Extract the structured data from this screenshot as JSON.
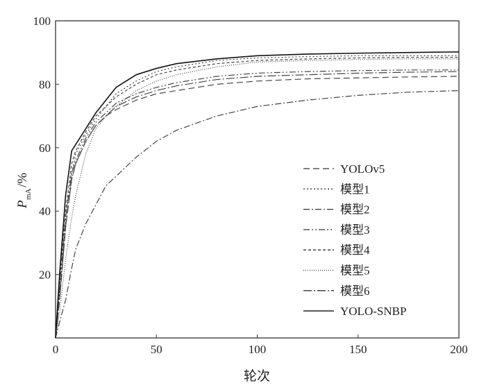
{
  "chart_data": {
    "type": "line",
    "title": "",
    "xlabel": "轮次",
    "ylabel": "P",
    "ylabel_sub": "mA",
    "ylabel_suffix": "/%",
    "xlim": [
      0,
      200
    ],
    "ylim": [
      0,
      100
    ],
    "xticks": [
      0,
      50,
      100,
      150,
      200
    ],
    "yticks": [
      20,
      40,
      60,
      80,
      100
    ],
    "grid": false,
    "legend_position": "center-right",
    "x": [
      0,
      2,
      5,
      8,
      10,
      15,
      20,
      25,
      30,
      40,
      50,
      60,
      80,
      100,
      125,
      150,
      175,
      200
    ],
    "series": [
      {
        "name": "YOLOv5",
        "dash": "dashed",
        "values": [
          0,
          12,
          35,
          50,
          55,
          62,
          67,
          70,
          72,
          75,
          77,
          78,
          80,
          81,
          81.7,
          82,
          82.3,
          82.5
        ]
      },
      {
        "name": "模型1",
        "dash": "dotted",
        "values": [
          0,
          15,
          38,
          52,
          58,
          64,
          69,
          73,
          77,
          81,
          84,
          85.5,
          87.5,
          88.3,
          88.7,
          89,
          89,
          89
        ]
      },
      {
        "name": "模型2",
        "dash": "dashdot",
        "values": [
          0,
          5,
          12,
          22,
          28,
          36,
          42,
          48,
          51,
          57,
          62,
          65.5,
          70,
          73,
          75,
          76.5,
          77.5,
          78
        ]
      },
      {
        "name": "模型3",
        "dash": "dashdotdot",
        "values": [
          0,
          15,
          38,
          52,
          56,
          63,
          68,
          71,
          74,
          77,
          79,
          80.5,
          82.5,
          83.5,
          84,
          84.3,
          84.5,
          84.5
        ]
      },
      {
        "name": "模型4",
        "dash": "shortdash",
        "values": [
          0,
          18,
          40,
          55,
          59,
          65,
          70,
          73,
          76,
          80,
          83,
          84.5,
          86.5,
          87.5,
          88,
          88.3,
          88.5,
          88.5
        ]
      },
      {
        "name": "模型5",
        "dash": "finedot",
        "values": [
          0,
          8,
          25,
          38,
          45,
          58,
          66,
          70,
          73,
          78,
          81,
          83,
          85.5,
          87,
          87.5,
          87.8,
          88,
          88
        ]
      },
      {
        "name": "模型6",
        "dash": "longdashdot",
        "values": [
          0,
          12,
          35,
          50,
          55,
          62,
          67,
          70,
          73,
          76,
          78,
          79.5,
          81.5,
          82.5,
          83,
          83.5,
          83.8,
          84
        ]
      },
      {
        "name": "YOLO-SNBP",
        "dash": "solid",
        "values": [
          0,
          20,
          45,
          59,
          61,
          66,
          71,
          75,
          79,
          83,
          85,
          86.5,
          88,
          89,
          89.5,
          89.8,
          90,
          90.2
        ]
      }
    ]
  }
}
